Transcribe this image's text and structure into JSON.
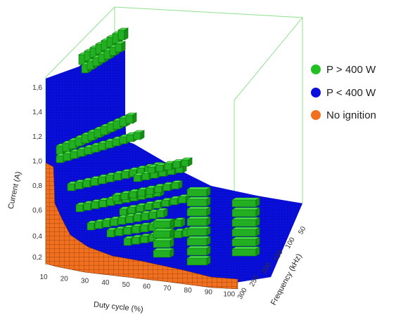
{
  "chart_data": {
    "type": "3d-bar",
    "title": "",
    "xlabel": "Duty cycle (%)",
    "ylabel": "Current (A)",
    "zlabel": "Frequency (kHz)",
    "x_ticks": [
      "10",
      "20",
      "30",
      "40",
      "50",
      "60",
      "70",
      "80",
      "90",
      "100"
    ],
    "y_ticks": [
      "0,2",
      "0,4",
      "0,6",
      "0,8",
      "1,0",
      "1,2",
      "1,4",
      "1,6"
    ],
    "z_ticks": [
      "50",
      "100",
      "150",
      "200",
      "250",
      "300"
    ],
    "legend": [
      {
        "label": "P > 400 W",
        "color": "#22c022"
      },
      {
        "label": "P < 400 W",
        "color": "#0a10dc"
      },
      {
        "label": "No ignition",
        "color": "#f07020"
      }
    ],
    "regions": [
      {
        "class": "No ignition",
        "duty_cycle": [
          10,
          100
        ],
        "frequency": [
          50,
          300
        ],
        "current_max": 1.0
      },
      {
        "class": "P < 400 W",
        "duty_cycle": [
          10,
          100
        ],
        "frequency": [
          50,
          300
        ],
        "current_max": 1.6
      },
      {
        "class": "P > 400 W",
        "duty_cycle": [
          10,
          20
        ],
        "frequency": [
          250,
          300
        ],
        "current_range": [
          1.5,
          1.8
        ]
      },
      {
        "class": "P > 400 W",
        "duty_cycle": [
          10,
          40
        ],
        "frequency": [
          50,
          300
        ],
        "current_range": [
          1.0,
          1.2
        ]
      },
      {
        "class": "P > 400 W",
        "duty_cycle": [
          20,
          70
        ],
        "frequency": [
          50,
          300
        ],
        "current_range": [
          0.4,
          1.0
        ]
      },
      {
        "class": "P > 400 W",
        "duty_cycle": [
          70,
          100
        ],
        "frequency": [
          50,
          300
        ],
        "current_range": [
          0.2,
          0.6
        ]
      }
    ]
  }
}
